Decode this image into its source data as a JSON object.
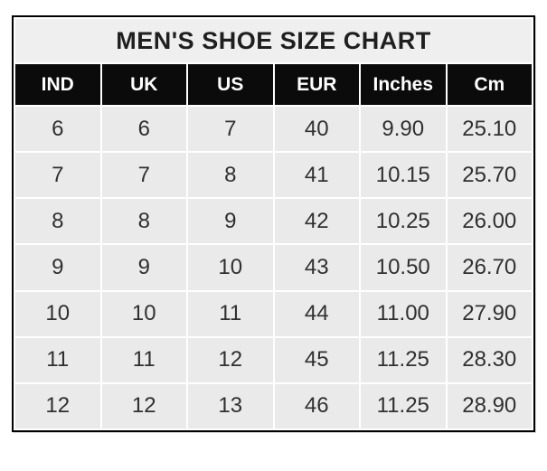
{
  "chart_data": {
    "type": "table",
    "title": "MEN'S SHOE SIZE CHART",
    "columns": [
      "IND",
      "UK",
      "US",
      "EUR",
      "Inches",
      "Cm"
    ],
    "rows": [
      [
        "6",
        "6",
        "7",
        "40",
        "9.90",
        "25.10"
      ],
      [
        "7",
        "7",
        "8",
        "41",
        "10.15",
        "25.70"
      ],
      [
        "8",
        "8",
        "9",
        "42",
        "10.25",
        "26.00"
      ],
      [
        "9",
        "9",
        "10",
        "43",
        "10.50",
        "26.70"
      ],
      [
        "10",
        "10",
        "11",
        "44",
        "11.00",
        "27.90"
      ],
      [
        "11",
        "11",
        "12",
        "45",
        "11.25",
        "28.30"
      ],
      [
        "12",
        "12",
        "13",
        "46",
        "11.25",
        "28.90"
      ]
    ]
  },
  "theme": {
    "header_bg": "#0b0b0b",
    "header_text": "#ffffff",
    "title_bg": "#efefef",
    "title_text": "#1f1f1f",
    "cell_bg": "#eaeaea",
    "cell_text": "#303030",
    "grid_gap": "#ffffff",
    "border": "#000000"
  }
}
